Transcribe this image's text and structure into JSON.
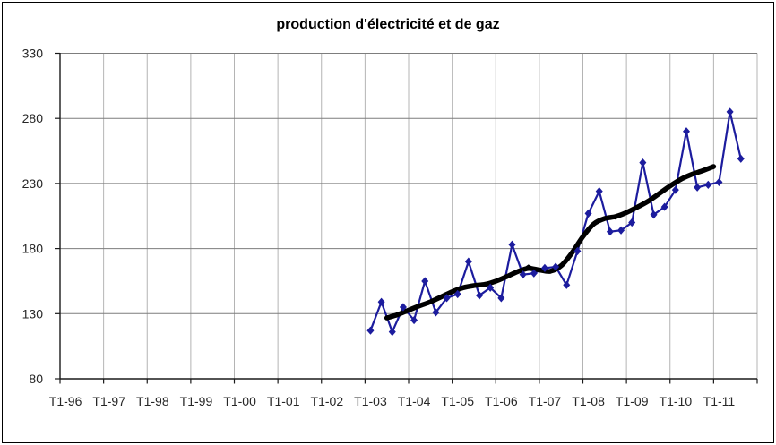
{
  "chart_data": {
    "type": "line",
    "title": "production d'électricité et de gaz",
    "legend": "none",
    "grid": {
      "horizontal": true,
      "vertical": true
    },
    "x_axis": {
      "kind": "category-quarterly",
      "tick_labels": [
        "T1-96",
        "T1-97",
        "T1-98",
        "T1-99",
        "T1-00",
        "T1-01",
        "T1-02",
        "T1-03",
        "T1-04",
        "T1-05",
        "T1-06",
        "T1-07",
        "T1-08",
        "T1-09",
        "T1-10",
        "T1-11"
      ],
      "quarters_total": 64,
      "first_category": "T1-96",
      "last_category": "T4-11"
    },
    "y_axis": {
      "min": 80,
      "max": 330,
      "step": 50,
      "ticks": [
        330,
        280,
        230,
        180,
        130,
        80
      ]
    },
    "series": [
      {
        "id": "quarterly-series",
        "marker": "diamond",
        "color": "#1c1c9e",
        "quarters": [
          "T1-03",
          "T2-03",
          "T3-03",
          "T4-03",
          "T1-04",
          "T2-04",
          "T3-04",
          "T4-04",
          "T1-05",
          "T2-05",
          "T3-05",
          "T4-05",
          "T1-06",
          "T2-06",
          "T3-06",
          "T4-06",
          "T1-07",
          "T2-07",
          "T3-07",
          "T4-07",
          "T1-08",
          "T2-08",
          "T3-08",
          "T4-08",
          "T1-09",
          "T2-09",
          "T3-09",
          "T4-09",
          "T1-10",
          "T2-10",
          "T3-10",
          "T4-10",
          "T1-11",
          "T2-11",
          "T3-11"
        ],
        "values": [
          117,
          139,
          116,
          135,
          125,
          155,
          131,
          142,
          145,
          170,
          144,
          150,
          142,
          183,
          160,
          161,
          165,
          166,
          152,
          178,
          207,
          224,
          193,
          194,
          200,
          246,
          206,
          212,
          225,
          270,
          227,
          229,
          231,
          285,
          249
        ]
      },
      {
        "id": "trend-moving-average-4q",
        "color": "#000000",
        "style": "thick-smooth",
        "center_start_quarter_offset": 1.5,
        "values": [
          126.75,
          128.75,
          132.75,
          136.5,
          138.25,
          143.25,
          147,
          150.25,
          152.25,
          151.5,
          154.75,
          158.75,
          161.5,
          167.25,
          163,
          161,
          165.25,
          175.75,
          190.25,
          200.5,
          204.5,
          202.75,
          208.25,
          211.5,
          216,
          222.25,
          228.25,
          233.5,
          237.75,
          239.25,
          243
        ]
      }
    ]
  },
  "colors": {
    "background": "#ffffff",
    "frame_border": "#000000",
    "h_gridline": "#7d7d7d",
    "v_gridline": "#b4b4b4",
    "axis": "#1a1a1a",
    "tick_label": "#262626",
    "series": "#1c1c9e",
    "trend": "#000000"
  }
}
